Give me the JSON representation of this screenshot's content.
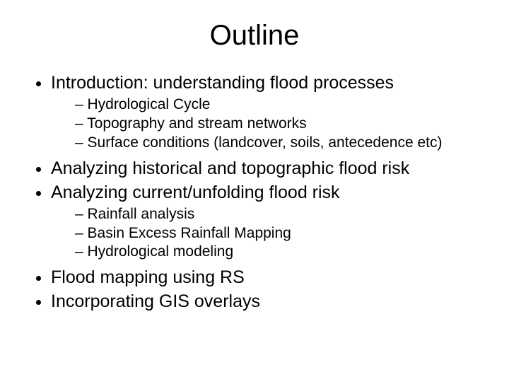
{
  "slide": {
    "background_color": "#ffffff",
    "text_color": "#000000",
    "font_family": "Arial",
    "title": {
      "text": "Outline",
      "fontsize": 40,
      "align": "center",
      "weight": "normal"
    },
    "body_fontsize_level1": 25,
    "body_fontsize_level2": 21,
    "bullets": [
      {
        "text": "Introduction: understanding flood processes",
        "children": [
          {
            "text": "Hydrological Cycle"
          },
          {
            "text": "Topography and stream networks"
          },
          {
            "text": "Surface conditions (landcover, soils, antecedence etc)"
          }
        ]
      },
      {
        "text": "Analyzing historical and topographic flood risk",
        "children": []
      },
      {
        "text": "Analyzing current/unfolding flood risk",
        "children": [
          {
            "text": "Rainfall analysis"
          },
          {
            "text": "Basin Excess Rainfall Mapping"
          },
          {
            "text": "Hydrological modeling"
          }
        ]
      },
      {
        "text": "Flood mapping using RS",
        "children": []
      },
      {
        "text": "Incorporating GIS overlays",
        "children": []
      }
    ]
  }
}
